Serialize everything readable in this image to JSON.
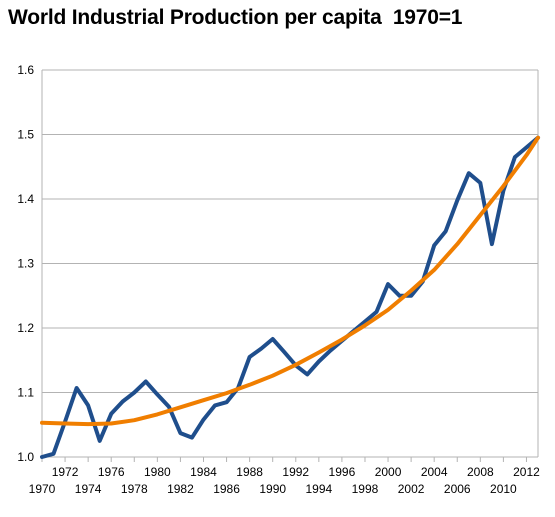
{
  "chart_data": {
    "type": "line",
    "title": "World Industrial Production per capita  1970=1",
    "xlabel": "",
    "ylabel": "",
    "ylim": [
      1.0,
      1.6
    ],
    "xlim": [
      1970,
      2013
    ],
    "yticks": [
      "1.0",
      "1.1",
      "1.2",
      "1.3",
      "1.4",
      "1.5",
      "1.6"
    ],
    "xticks_upper": [
      "1972",
      "1976",
      "1980",
      "1984",
      "1988",
      "1992",
      "1996",
      "2000",
      "2004",
      "2008",
      "2012"
    ],
    "xticks_lower": [
      "1970",
      "1974",
      "1978",
      "1982",
      "1986",
      "1990",
      "1994",
      "1998",
      "2002",
      "2006",
      "2010"
    ],
    "grid": "horizontal",
    "legend": "none",
    "series": [
      {
        "color": "#1f4e8c",
        "style": "data",
        "x": [
          1970,
          1971,
          1972,
          1973,
          1974,
          1975,
          1976,
          1977,
          1978,
          1979,
          1980,
          1981,
          1982,
          1983,
          1984,
          1985,
          1986,
          1987,
          1988,
          1989,
          1990,
          1991,
          1992,
          1993,
          1994,
          1995,
          1996,
          1997,
          1998,
          1999,
          2000,
          2001,
          2002,
          2003,
          2004,
          2005,
          2006,
          2007,
          2008,
          2009,
          2010,
          2011,
          2012,
          2013
        ],
        "y": [
          1.0,
          1.005,
          1.055,
          1.107,
          1.08,
          1.025,
          1.067,
          1.086,
          1.1,
          1.117,
          1.097,
          1.078,
          1.037,
          1.03,
          1.058,
          1.08,
          1.085,
          1.107,
          1.155,
          1.168,
          1.183,
          1.163,
          1.142,
          1.128,
          1.148,
          1.165,
          1.18,
          1.195,
          1.21,
          1.225,
          1.268,
          1.25,
          1.25,
          1.272,
          1.328,
          1.35,
          1.398,
          1.44,
          1.425,
          1.33,
          1.413,
          1.465,
          1.48,
          1.495
        ]
      },
      {
        "color": "#f07e00",
        "style": "trend",
        "x": [
          1970,
          1972,
          1974,
          1976,
          1978,
          1980,
          1982,
          1984,
          1986,
          1988,
          1990,
          1992,
          1994,
          1996,
          1998,
          2000,
          2002,
          2004,
          2006,
          2008,
          2010,
          2012,
          2013
        ],
        "y": [
          1.053,
          1.052,
          1.051,
          1.052,
          1.057,
          1.066,
          1.077,
          1.088,
          1.099,
          1.112,
          1.126,
          1.143,
          1.162,
          1.182,
          1.204,
          1.228,
          1.258,
          1.29,
          1.33,
          1.375,
          1.42,
          1.468,
          1.495
        ]
      }
    ]
  }
}
